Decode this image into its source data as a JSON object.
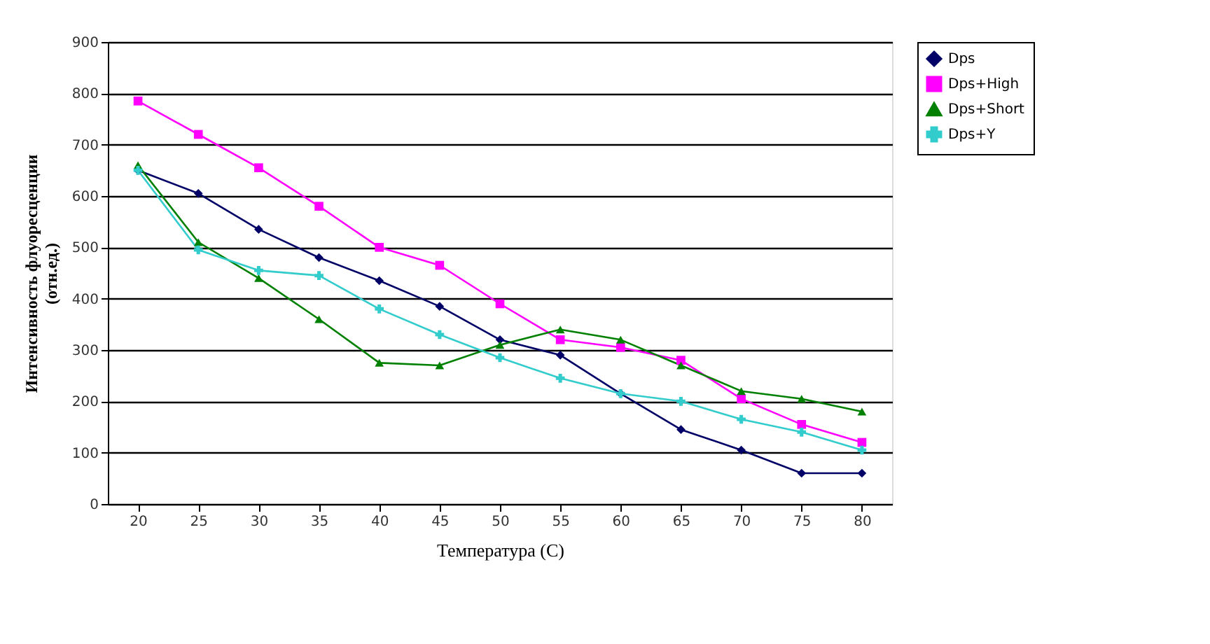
{
  "chart_data": {
    "type": "line",
    "xlabel": "Температура (С)",
    "ylabel": "Интенсивность флуоресценции\n(отн.ед.)",
    "categories": [
      "20",
      "25",
      "30",
      "35",
      "40",
      "45",
      "50",
      "55",
      "60",
      "65",
      "70",
      "75",
      "80"
    ],
    "series": [
      {
        "name": "Dps",
        "color": "#000066",
        "marker": "diamond",
        "values": [
          650,
          605,
          535,
          480,
          435,
          385,
          320,
          290,
          215,
          145,
          105,
          60,
          60
        ]
      },
      {
        "name": "Dps+High",
        "color": "#ff00ff",
        "marker": "square",
        "values": [
          785,
          720,
          655,
          580,
          500,
          465,
          390,
          320,
          305,
          280,
          205,
          155,
          120
        ]
      },
      {
        "name": "Dps+Short",
        "color": "#008000",
        "marker": "triangle",
        "values": [
          660,
          510,
          440,
          360,
          275,
          270,
          310,
          340,
          320,
          270,
          220,
          205,
          180
        ]
      },
      {
        "name": "Dps+Y",
        "color": "#33cccc",
        "marker": "cross",
        "values": [
          650,
          495,
          455,
          445,
          380,
          330,
          285,
          245,
          215,
          200,
          165,
          140,
          105
        ]
      }
    ],
    "ylim": [
      0,
      900
    ],
    "yticks": [
      0,
      100,
      200,
      300,
      400,
      500,
      600,
      700,
      800,
      900
    ],
    "grid": "y",
    "legend": "right",
    "line_style": "solid"
  }
}
